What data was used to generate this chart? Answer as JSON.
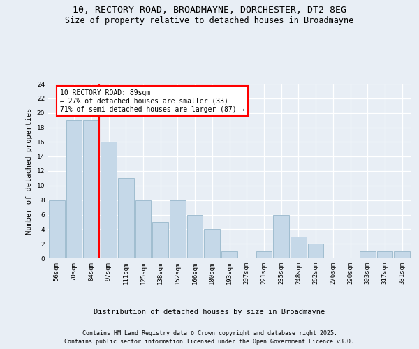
{
  "title_line1": "10, RECTORY ROAD, BROADMAYNE, DORCHESTER, DT2 8EG",
  "title_line2": "Size of property relative to detached houses in Broadmayne",
  "xlabel": "Distribution of detached houses by size in Broadmayne",
  "ylabel": "Number of detached properties",
  "bar_labels": [
    "56sqm",
    "70sqm",
    "84sqm",
    "97sqm",
    "111sqm",
    "125sqm",
    "138sqm",
    "152sqm",
    "166sqm",
    "180sqm",
    "193sqm",
    "207sqm",
    "221sqm",
    "235sqm",
    "248sqm",
    "262sqm",
    "276sqm",
    "290sqm",
    "303sqm",
    "317sqm",
    "331sqm"
  ],
  "bar_values": [
    8,
    19,
    19,
    16,
    11,
    8,
    5,
    8,
    6,
    4,
    1,
    0,
    1,
    6,
    3,
    2,
    0,
    0,
    1,
    1,
    1
  ],
  "bar_color": "#c5d8e8",
  "bar_edge_color": "#a0bdd0",
  "ylim": [
    0,
    24
  ],
  "yticks": [
    0,
    2,
    4,
    6,
    8,
    10,
    12,
    14,
    16,
    18,
    20,
    22,
    24
  ],
  "annotation_text": "10 RECTORY ROAD: 89sqm\n← 27% of detached houses are smaller (33)\n71% of semi-detached houses are larger (87) →",
  "footer_line1": "Contains HM Land Registry data © Crown copyright and database right 2025.",
  "footer_line2": "Contains public sector information licensed under the Open Government Licence v3.0.",
  "bg_color": "#e8eef5",
  "plot_bg_color": "#e8eef5",
  "grid_color": "#ffffff",
  "title_fontsize": 9.5,
  "subtitle_fontsize": 8.5,
  "axis_label_fontsize": 7.5,
  "tick_fontsize": 6.5,
  "annotation_fontsize": 7,
  "footer_fontsize": 6,
  "ylabel_fontsize": 7.5
}
